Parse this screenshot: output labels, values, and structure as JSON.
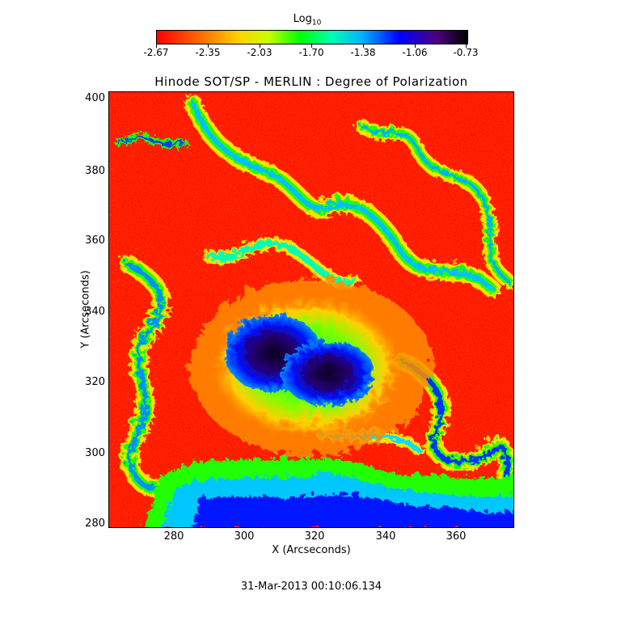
{
  "colorbar": {
    "title": "Log",
    "title_sub": "10",
    "tick_labels": [
      "-2.67",
      "-2.35",
      "-2.03",
      "-1.70",
      "-1.38",
      "-1.06",
      "-0.73"
    ]
  },
  "plot": {
    "title": "Hinode SOT/SP - MERLIN : Degree of Polarization",
    "xlabel": "X (Arcseconds)",
    "ylabel": "Y (Arcseconds)",
    "xticks": [
      "280",
      "300",
      "320",
      "340",
      "360"
    ],
    "yticks": [
      "400",
      "380",
      "360",
      "340",
      "320",
      "300",
      "280"
    ]
  },
  "footer": {
    "date": "31-Mar-2013 00:10:06.134"
  },
  "colors": {
    "background": "#ff1a00",
    "orange": "#ff8c00",
    "yellow": "#ffe000",
    "green": "#22ff00",
    "cyan": "#00e0ff",
    "blue": "#0010ff",
    "dark_blue": "#1a0066",
    "core": "#0a0020"
  }
}
